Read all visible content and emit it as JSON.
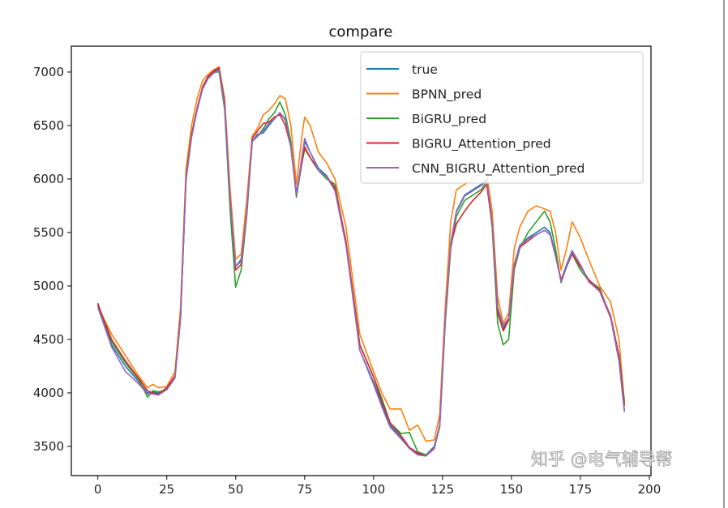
{
  "chart_data": {
    "type": "line",
    "title": "compare",
    "xlabel": "",
    "ylabel": "",
    "xlim": [
      -9.6,
      200.6
    ],
    "ylim": [
      3227,
      7242
    ],
    "xticks": [
      0,
      25,
      50,
      75,
      100,
      125,
      150,
      175,
      200
    ],
    "yticks": [
      3500,
      4000,
      4500,
      5000,
      5500,
      6000,
      6500,
      7000
    ],
    "grid": false,
    "legend_position": "top-right",
    "x": [
      0,
      5,
      10,
      15,
      18,
      20,
      22,
      25,
      28,
      30,
      32,
      34,
      36,
      38,
      40,
      42,
      44,
      46,
      48,
      50,
      52,
      54,
      56,
      58,
      60,
      62,
      64,
      66,
      68,
      70,
      72,
      74,
      75,
      77,
      80,
      83,
      86,
      90,
      95,
      100,
      103,
      106,
      110,
      113,
      116,
      119,
      122,
      124,
      126,
      128,
      130,
      133,
      136,
      139,
      141,
      143,
      145,
      147,
      149,
      151,
      153,
      156,
      159,
      162,
      164,
      166,
      168,
      170,
      172,
      175,
      178,
      182,
      186,
      189,
      191
    ],
    "series": [
      {
        "name": "true",
        "color": "#1f77b4",
        "values": [
          4840,
          4450,
          4250,
          4100,
          4000,
          4010,
          4000,
          4040,
          4150,
          4700,
          6000,
          6400,
          6650,
          6850,
          6950,
          7000,
          7030,
          6700,
          5800,
          5180,
          5250,
          5700,
          6350,
          6420,
          6430,
          6500,
          6560,
          6620,
          6550,
          6300,
          5850,
          6200,
          6350,
          6250,
          6100,
          6030,
          5900,
          5400,
          4400,
          4100,
          3900,
          3700,
          3580,
          3480,
          3430,
          3420,
          3500,
          3700,
          4700,
          5400,
          5700,
          5850,
          5900,
          5950,
          6000,
          5600,
          4800,
          4600,
          4700,
          5200,
          5380,
          5450,
          5500,
          5550,
          5500,
          5300,
          5050,
          5200,
          5330,
          5200,
          5050,
          4950,
          4700,
          4300,
          3830
        ]
      },
      {
        "name": "BPNN_pred",
        "color": "#ff7f0e",
        "values": [
          4800,
          4550,
          4350,
          4150,
          4050,
          4080,
          4050,
          4060,
          4200,
          4800,
          6100,
          6500,
          6750,
          6920,
          6980,
          7020,
          7050,
          6750,
          5900,
          5250,
          5300,
          5800,
          6400,
          6480,
          6600,
          6640,
          6700,
          6780,
          6750,
          6500,
          5950,
          6400,
          6580,
          6500,
          6250,
          6150,
          6000,
          5550,
          4550,
          4200,
          4000,
          3850,
          3850,
          3650,
          3700,
          3550,
          3560,
          3800,
          4800,
          5600,
          5900,
          5950,
          6000,
          6050,
          6050,
          5700,
          4900,
          4650,
          4750,
          5350,
          5550,
          5700,
          5750,
          5720,
          5700,
          5500,
          5150,
          5350,
          5600,
          5450,
          5250,
          5000,
          4850,
          4500,
          3900
        ]
      },
      {
        "name": "BiGRU_pred",
        "color": "#2ca02c",
        "values": [
          4820,
          4480,
          4280,
          4120,
          3960,
          4020,
          4010,
          4030,
          4160,
          4720,
          6020,
          6420,
          6660,
          6860,
          6960,
          7000,
          7000,
          6650,
          5700,
          4990,
          5150,
          5650,
          6350,
          6400,
          6470,
          6560,
          6620,
          6720,
          6600,
          6350,
          5830,
          6150,
          6280,
          6200,
          6080,
          6000,
          5950,
          5400,
          4450,
          4150,
          3950,
          3720,
          3620,
          3630,
          3450,
          3420,
          3480,
          3680,
          4650,
          5350,
          5650,
          5800,
          5850,
          5900,
          5980,
          5550,
          4650,
          4450,
          4500,
          5150,
          5350,
          5500,
          5600,
          5700,
          5600,
          5350,
          5030,
          5180,
          5300,
          5150,
          5050,
          4980,
          4700,
          4350,
          3920
        ]
      },
      {
        "name": "BIGRU_Attention_pred",
        "color": "#d62728",
        "values": [
          4830,
          4500,
          4300,
          4130,
          4020,
          4000,
          3990,
          4050,
          4160,
          4710,
          6010,
          6410,
          6660,
          6860,
          6960,
          7010,
          7040,
          6720,
          5820,
          5150,
          5200,
          5680,
          6380,
          6450,
          6520,
          6530,
          6580,
          6600,
          6500,
          6300,
          5870,
          6150,
          6300,
          6200,
          6080,
          6020,
          5920,
          5420,
          4450,
          4150,
          3920,
          3720,
          3600,
          3490,
          3440,
          3410,
          3480,
          3700,
          4700,
          5380,
          5580,
          5700,
          5800,
          5880,
          5950,
          5580,
          4750,
          4580,
          4680,
          5180,
          5360,
          5420,
          5480,
          5520,
          5480,
          5280,
          5060,
          5180,
          5300,
          5180,
          5060,
          4960,
          4720,
          4350,
          3880
        ]
      },
      {
        "name": "CNN_BIGRU_Attention_pred",
        "color": "#9467bd",
        "values": [
          4800,
          4430,
          4200,
          4080,
          3990,
          3990,
          3980,
          4030,
          4140,
          4690,
          5990,
          6390,
          6640,
          6840,
          6940,
          6990,
          7020,
          6680,
          5800,
          5180,
          5230,
          5690,
          6350,
          6400,
          6450,
          6520,
          6560,
          6620,
          6560,
          6300,
          5850,
          6200,
          6380,
          6250,
          6080,
          6020,
          5890,
          5380,
          4400,
          4080,
          3870,
          3680,
          3570,
          3480,
          3420,
          3410,
          3490,
          3690,
          4690,
          5390,
          5690,
          5840,
          5890,
          5940,
          5990,
          5600,
          4800,
          4630,
          4700,
          5200,
          5370,
          5440,
          5480,
          5520,
          5480,
          5280,
          5040,
          5180,
          5320,
          5200,
          5040,
          4950,
          4700,
          4310,
          3820
        ]
      }
    ]
  },
  "watermark": "知乎 @电气辅导帮"
}
